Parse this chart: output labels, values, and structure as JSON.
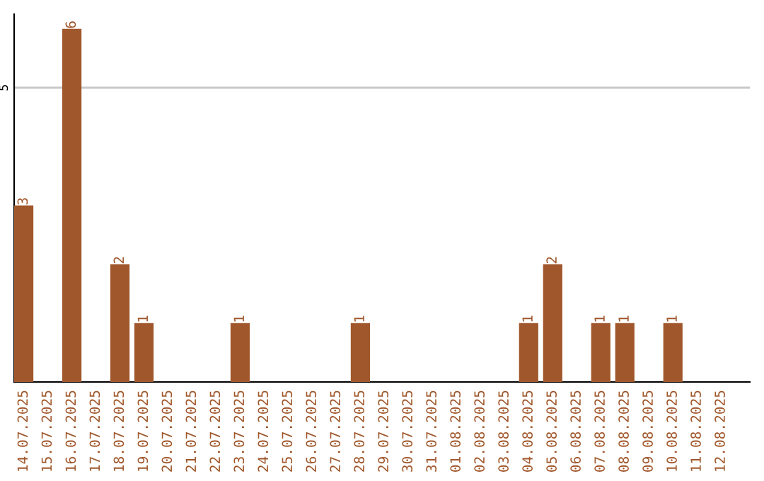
{
  "chart_data": {
    "type": "bar",
    "categories": [
      "14.07.2025",
      "15.07.2025",
      "16.07.2025",
      "17.07.2025",
      "18.07.2025",
      "19.07.2025",
      "20.07.2025",
      "21.07.2025",
      "22.07.2025",
      "23.07.2025",
      "24.07.2025",
      "25.07.2025",
      "26.07.2025",
      "27.07.2025",
      "28.07.2025",
      "29.07.2025",
      "30.07.2025",
      "31.07.2025",
      "01.08.2025",
      "02.08.2025",
      "03.08.2025",
      "04.08.2025",
      "05.08.2025",
      "06.08.2025",
      "07.08.2025",
      "08.08.2025",
      "09.08.2025",
      "10.08.2025",
      "11.08.2025",
      "12.08.2025"
    ],
    "values": [
      3,
      0,
      6,
      0,
      2,
      1,
      0,
      0,
      0,
      1,
      0,
      0,
      0,
      0,
      1,
      0,
      0,
      0,
      0,
      0,
      0,
      1,
      2,
      0,
      1,
      1,
      0,
      1,
      0,
      0
    ],
    "value_labels": [
      "3",
      null,
      "6",
      null,
      "2",
      "1",
      null,
      null,
      null,
      "1",
      null,
      null,
      null,
      null,
      "1",
      null,
      null,
      null,
      null,
      null,
      null,
      "1",
      "2",
      null,
      "1",
      "1",
      null,
      "1",
      null,
      null
    ],
    "color": "#a0572b",
    "ylim": [
      0,
      6.25
    ],
    "yticks": [
      5
    ],
    "grid": "y"
  }
}
